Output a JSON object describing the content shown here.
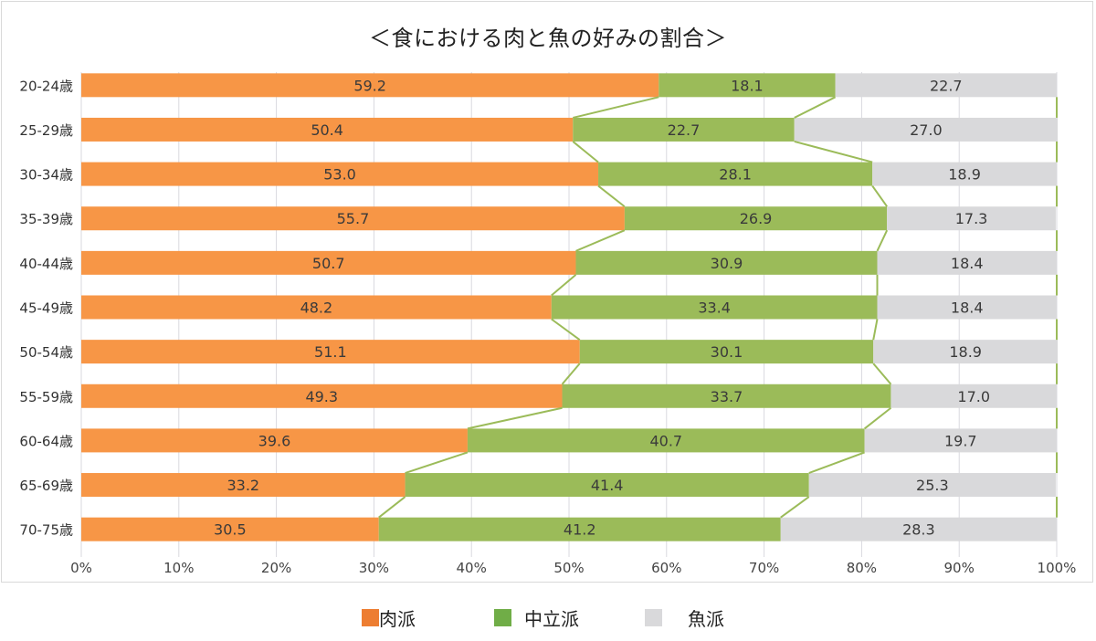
{
  "chart_data": {
    "type": "bar",
    "orientation": "horizontal",
    "stacked": "percent",
    "title": "＜食における肉と魚の好みの割合＞",
    "xlabel": "",
    "ylabel": "",
    "xlim": [
      0,
      100
    ],
    "x_ticks": [
      "0%",
      "10%",
      "20%",
      "30%",
      "40%",
      "50%",
      "60%",
      "70%",
      "80%",
      "90%",
      "100%"
    ],
    "grid": "vertical",
    "legend_position": "bottom",
    "series_lines": true,
    "categories": [
      "20-24歳",
      "25-29歳",
      "30-34歳",
      "35-39歳",
      "40-44歳",
      "45-49歳",
      "50-54歳",
      "55-59歳",
      "60-64歳",
      "65-69歳",
      "70-75歳"
    ],
    "series": [
      {
        "name": "肉派",
        "color": "#f79646",
        "legend_color": "#ed7d31",
        "values": [
          59.2,
          50.4,
          53.0,
          55.7,
          50.7,
          48.2,
          51.1,
          49.3,
          39.6,
          33.2,
          30.5
        ]
      },
      {
        "name": "中立派",
        "color": "#9bbb59",
        "legend_color": "#70ad47",
        "values": [
          18.1,
          22.7,
          28.1,
          26.9,
          30.9,
          33.4,
          30.1,
          33.7,
          40.7,
          41.4,
          41.2
        ]
      },
      {
        "name": "魚派",
        "color": "#d9d9db",
        "legend_color": "#d9d9db",
        "values": [
          22.7,
          27.0,
          18.9,
          17.3,
          18.4,
          18.4,
          18.9,
          17.0,
          19.7,
          25.3,
          28.3
        ]
      }
    ],
    "series_line_color": "#9bbb59"
  }
}
